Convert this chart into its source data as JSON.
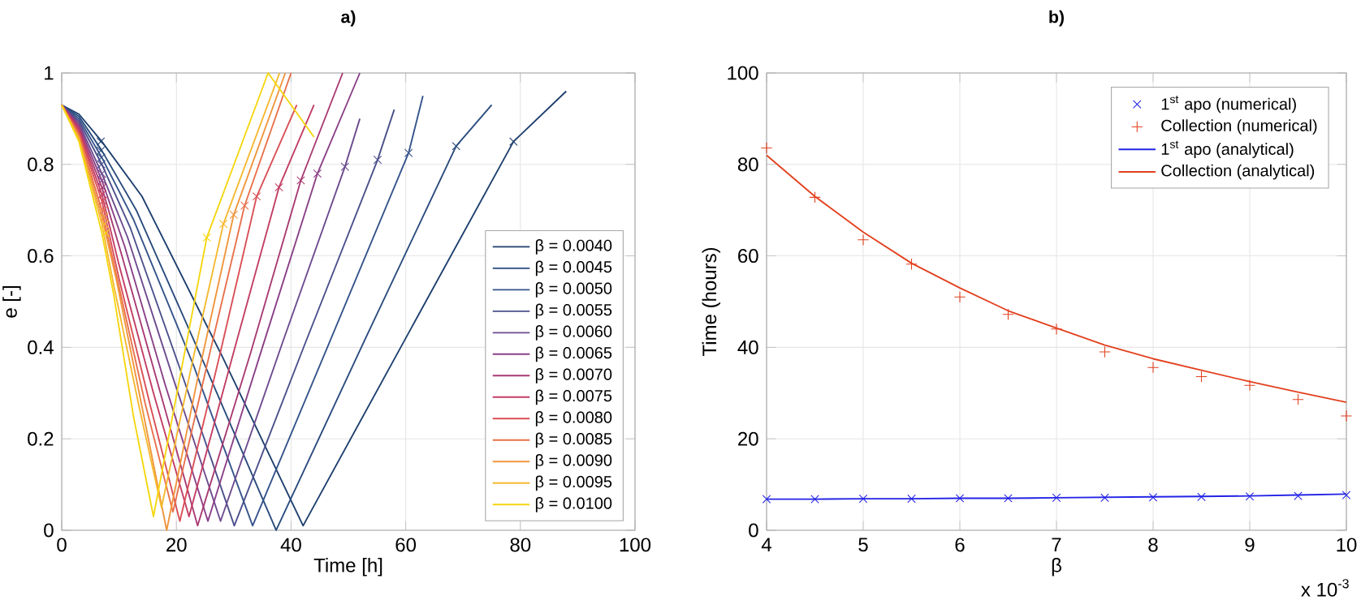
{
  "chart_data": [
    {
      "type": "line",
      "title": "a)",
      "xlabel": "Time [h]",
      "ylabel": "e [-]",
      "xlim": [
        0,
        100
      ],
      "ylim": [
        0,
        1
      ],
      "xticks": [
        0,
        20,
        40,
        60,
        80,
        100
      ],
      "yticks": [
        0,
        0.2,
        0.4,
        0.6,
        0.8,
        1
      ],
      "grid": true,
      "legend": "bottom right",
      "marker": "none",
      "series": [
        {
          "name": "β = 0.0040",
          "color": "#1d3f6e",
          "x": [
            0,
            3,
            7,
            14,
            28,
            42.1,
            60,
            78.8,
            88
          ],
          "values": [
            0.93,
            0.91,
            0.85,
            0.73,
            0.38,
            0.01,
            0.42,
            0.85,
            0.96
          ]
        },
        {
          "name": "β = 0.0045",
          "color": "#284a7c",
          "x": [
            0,
            3,
            7,
            13,
            25,
            37.4,
            53,
            68.8,
            75
          ],
          "values": [
            0.93,
            0.905,
            0.83,
            0.7,
            0.36,
            0.0,
            0.42,
            0.84,
            0.93
          ]
        },
        {
          "name": "β = 0.0050",
          "color": "#34538a",
          "x": [
            0,
            3,
            7,
            12.5,
            23,
            33.3,
            47,
            60.5,
            63
          ],
          "values": [
            0.93,
            0.9,
            0.815,
            0.68,
            0.36,
            0.01,
            0.42,
            0.825,
            0.95
          ]
        },
        {
          "name": "β = 0.0055",
          "color": "#4a4f8a",
          "x": [
            0,
            3,
            7,
            12,
            21,
            30.1,
            42.5,
            55.1,
            58
          ],
          "values": [
            0.93,
            0.895,
            0.8,
            0.66,
            0.34,
            0.01,
            0.41,
            0.81,
            0.92
          ]
        },
        {
          "name": "β = 0.0060",
          "color": "#6b4a8e",
          "x": [
            0,
            3,
            7,
            11.5,
            19.5,
            27.7,
            38.5,
            49.4,
            52
          ],
          "values": [
            0.93,
            0.89,
            0.78,
            0.64,
            0.33,
            0.02,
            0.41,
            0.795,
            0.9
          ]
        },
        {
          "name": "β = 0.0065",
          "color": "#8a3f87",
          "x": [
            0,
            3,
            7,
            11,
            18,
            25.5,
            35,
            44.6,
            52
          ],
          "values": [
            0.93,
            0.885,
            0.765,
            0.62,
            0.32,
            0.02,
            0.4,
            0.78,
            1.0
          ]
        },
        {
          "name": "β = 0.0070",
          "color": "#a83a72",
          "x": [
            0,
            3,
            7,
            10.5,
            17,
            23.7,
            33,
            41.7,
            49
          ],
          "values": [
            0.93,
            0.88,
            0.75,
            0.6,
            0.31,
            0.01,
            0.39,
            0.765,
            1.0
          ]
        },
        {
          "name": "β = 0.0075",
          "color": "#c23c63",
          "x": [
            0,
            3,
            7,
            10,
            16,
            22.2,
            30,
            37.9,
            44
          ],
          "values": [
            0.93,
            0.875,
            0.735,
            0.58,
            0.3,
            0.03,
            0.39,
            0.75,
            0.93
          ]
        },
        {
          "name": "β = 0.0080",
          "color": "#d94e55",
          "x": [
            0,
            3,
            7,
            10,
            15.5,
            20.6,
            27.5,
            34,
            41
          ],
          "values": [
            0.93,
            0.87,
            0.72,
            0.55,
            0.27,
            0.02,
            0.38,
            0.73,
            0.93
          ]
        },
        {
          "name": "β = 0.0085",
          "color": "#e8704a",
          "x": [
            0,
            3,
            7,
            9.5,
            14.5,
            19.4,
            25.5,
            31.9,
            40
          ],
          "values": [
            0.93,
            0.865,
            0.7,
            0.56,
            0.28,
            0.04,
            0.37,
            0.71,
            1.0
          ]
        },
        {
          "name": "β = 0.0090",
          "color": "#f0953c",
          "x": [
            0,
            3,
            7,
            9.5,
            14,
            18.3,
            24,
            30,
            39
          ],
          "values": [
            0.93,
            0.86,
            0.685,
            0.55,
            0.27,
            0.0,
            0.35,
            0.69,
            1.0
          ]
        },
        {
          "name": "β = 0.0095",
          "color": "#f5b82e",
          "x": [
            0,
            3,
            7,
            9,
            13.5,
            17.4,
            23,
            28.2,
            38
          ],
          "values": [
            0.93,
            0.855,
            0.67,
            0.54,
            0.27,
            0.05,
            0.38,
            0.67,
            1.0
          ]
        },
        {
          "name": "β = 0.0100",
          "color": "#f5d60f",
          "x": [
            0,
            3,
            7,
            9,
            12.5,
            16,
            21,
            25.3,
            36,
            44
          ],
          "values": [
            0.93,
            0.85,
            0.65,
            0.52,
            0.25,
            0.03,
            0.36,
            0.64,
            1.0,
            0.86
          ]
        },
        {
          "type": "scatter",
          "marker": "cross",
          "colors": [
            "#1d3f6e",
            "#284a7c",
            "#34538a",
            "#4a4f8a",
            "#6b4a8e",
            "#8a3f87",
            "#a83a72",
            "#c23c63",
            "#d94e55",
            "#e8704a",
            "#f0953c",
            "#f5b82e",
            "#f5d60f"
          ],
          "x": [
            6.8,
            6.8,
            6.9,
            6.9,
            7.0,
            7.0,
            7.1,
            7.1,
            7.2,
            7.3,
            7.4,
            7.5,
            7.7
          ],
          "values": [
            0.85,
            0.83,
            0.815,
            0.8,
            0.78,
            0.765,
            0.75,
            0.735,
            0.72,
            0.7,
            0.685,
            0.67,
            0.65
          ]
        },
        {
          "type": "scatter",
          "marker": "cross",
          "colors": [
            "#1d3f6e",
            "#284a7c",
            "#34538a",
            "#4a4f8a",
            "#6b4a8e",
            "#8a3f87",
            "#a83a72",
            "#c23c63",
            "#d94e55",
            "#e8704a",
            "#f0953c",
            "#f5b82e",
            "#f5d60f"
          ],
          "x": [
            78.8,
            68.8,
            60.5,
            55.1,
            49.4,
            44.6,
            41.7,
            37.9,
            34,
            31.9,
            30,
            28.2,
            25.3
          ],
          "values": [
            0.85,
            0.84,
            0.825,
            0.81,
            0.795,
            0.78,
            0.765,
            0.75,
            0.73,
            0.71,
            0.69,
            0.67,
            0.64
          ]
        }
      ]
    },
    {
      "type": "line",
      "title": "b)",
      "xlabel": "β",
      "ylabel": "Time (hours)",
      "annotations": [
        "x 10$^{-3}$"
      ],
      "xlim": [
        4,
        10
      ],
      "ylim": [
        0,
        100
      ],
      "xticks": [
        4,
        5,
        6,
        7,
        8,
        9,
        10
      ],
      "yticks": [
        0,
        20,
        40,
        60,
        80,
        100
      ],
      "grid": true,
      "legend": "top right",
      "series": [
        {
          "name": "1$^{st}$ apo (numerical)",
          "type": "scatter",
          "marker": "cross",
          "color": "#2323e6",
          "x": [
            4,
            4.5,
            5,
            5.5,
            6,
            6.5,
            7,
            7.5,
            8,
            8.5,
            9,
            9.5,
            10
          ],
          "values": [
            6.8,
            6.8,
            6.9,
            6.9,
            7.0,
            7.0,
            7.1,
            7.1,
            7.2,
            7.3,
            7.4,
            7.5,
            7.7
          ]
        },
        {
          "name": "Collection (numerical)",
          "type": "scatter",
          "marker": "plus",
          "color": "#e2411f",
          "x": [
            4,
            4.5,
            5,
            5.5,
            6,
            6.5,
            7,
            7.5,
            8,
            8.5,
            9,
            9.5,
            10
          ],
          "values": [
            83.6,
            72.8,
            63.5,
            58.2,
            51,
            47.2,
            44,
            39,
            35.6,
            33.6,
            31.7,
            28.6,
            25
          ]
        },
        {
          "name": "1$^{st}$ apo (analytical)",
          "marker": "none",
          "color": "#2323e6",
          "x": [
            4,
            4.5,
            5,
            5.5,
            6,
            6.5,
            7,
            7.5,
            8,
            8.5,
            9,
            9.5,
            10
          ],
          "values": [
            6.8,
            6.8,
            6.9,
            6.9,
            7.0,
            7.0,
            7.1,
            7.2,
            7.3,
            7.4,
            7.5,
            7.7,
            7.9
          ]
        },
        {
          "name": "Collection (analytical)",
          "marker": "none",
          "color": "#e2411f",
          "x": [
            4,
            4.5,
            5,
            5.5,
            6,
            6.5,
            7,
            7.5,
            8,
            8.5,
            9,
            9.5,
            10
          ],
          "values": [
            82,
            73,
            65.2,
            58.4,
            53,
            48,
            44.2,
            40.5,
            37.5,
            35,
            32.5,
            30.2,
            28
          ]
        }
      ]
    }
  ]
}
